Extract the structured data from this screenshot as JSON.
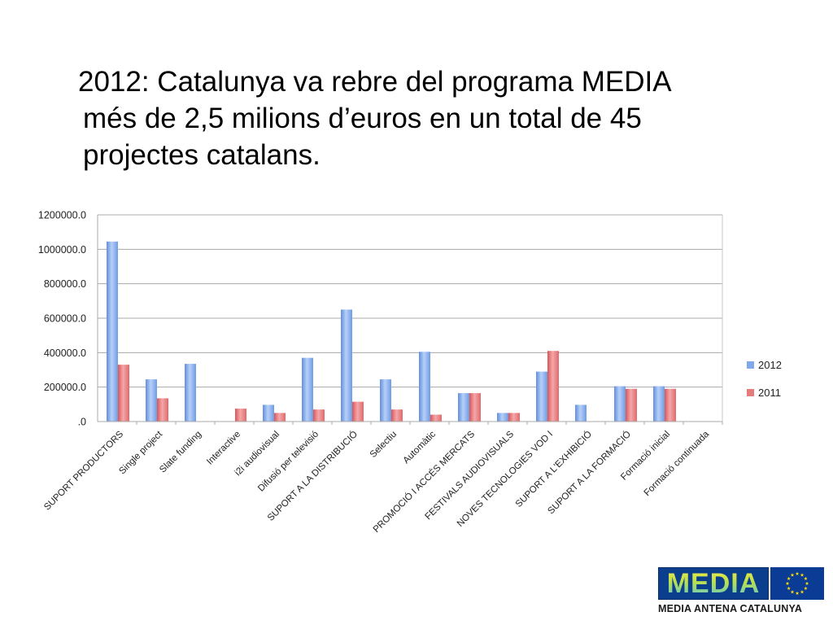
{
  "slide": {
    "title_line1": "2012: Catalunya va rebre del programa MEDIA",
    "title_line2": "més de 2,5 milions d’euros en un total de 45",
    "title_line3": "projectes catalans."
  },
  "logo": {
    "wordmark": "MEDIA",
    "caption": "MEDIA ANTENA CATALUNYA",
    "flag_icon": "eu-flag-icon",
    "colors": {
      "box": "#0b3f8e",
      "flag": "#0a3c96",
      "stars": "#ffdd00"
    }
  },
  "chart_data": {
    "type": "bar",
    "categories": [
      "SUPORT PRODUCTORS",
      "Single project",
      "Slate funding",
      "Interactive",
      "i2i audiovisual",
      "Difusió per televisió",
      "SUPORT A LA DISTRIBUCIÓ",
      "Selectiu",
      "Automàtic",
      "PROMOCIÓ I ACCÉS MERCATS",
      "FESTIVALS AUDIOVISUALS",
      "NOVES TECNOLOGIES VOD I",
      "SUPORT A L'EXHIBICIÓ",
      "SUPORT A LA FORMACIÓ",
      "Formació inicial",
      "Formació continuada"
    ],
    "series": [
      {
        "name": "2012",
        "color": "#7fa9e8",
        "values": [
          1045000,
          245000,
          335000,
          0,
          97000,
          370000,
          650000,
          245000,
          405000,
          165000,
          50000,
          290000,
          97000,
          205000,
          205000,
          0
        ]
      },
      {
        "name": "2011",
        "color": "#e57b7d",
        "values": [
          330000,
          135000,
          0,
          75000,
          50000,
          70000,
          115000,
          70000,
          40000,
          165000,
          50000,
          410000,
          0,
          190000,
          190000,
          0
        ]
      }
    ],
    "yticks": [
      "1200000.0",
      "1000000.0",
      "800000.0",
      "600000.0",
      "400000.0",
      "200000.0",
      ".0"
    ],
    "ylim": [
      0,
      1200000
    ],
    "grid": true,
    "legend_position": "right"
  }
}
